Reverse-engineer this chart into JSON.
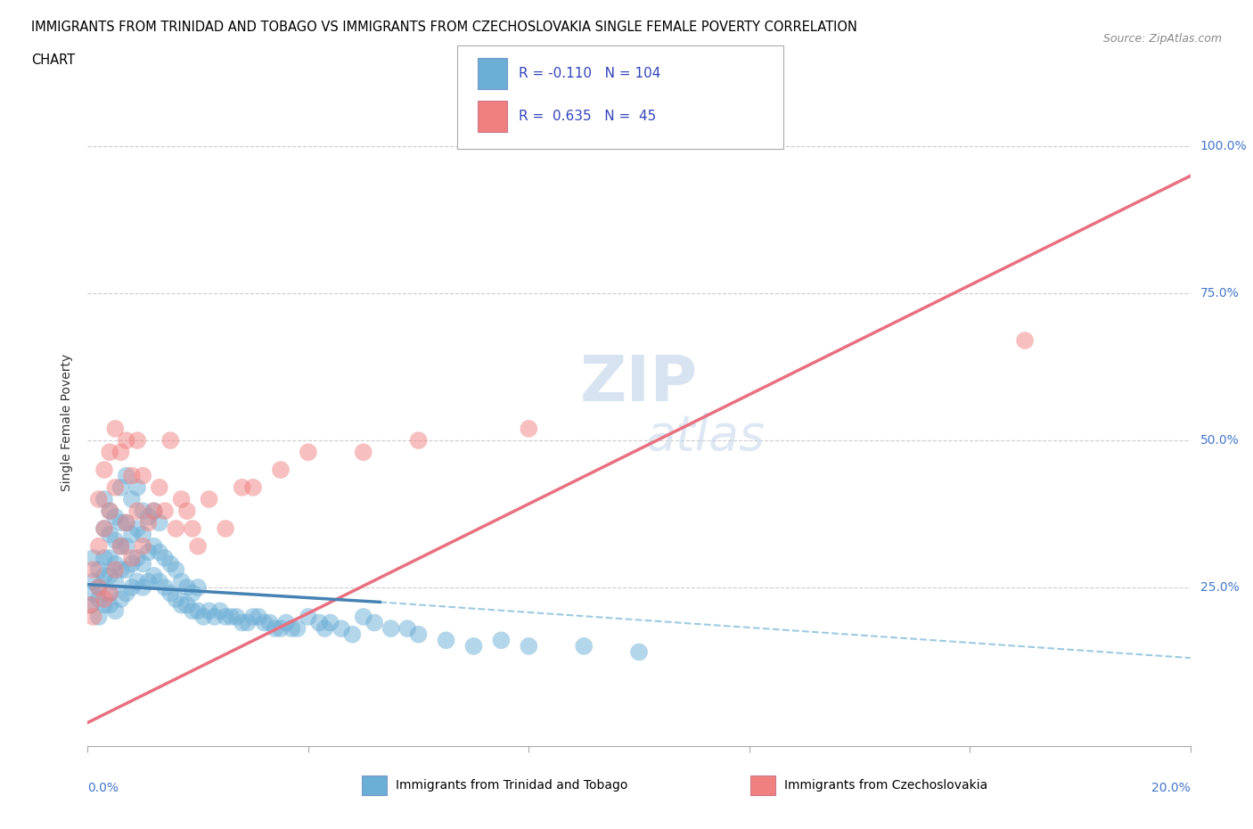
{
  "title_line1": "IMMIGRANTS FROM TRINIDAD AND TOBAGO VS IMMIGRANTS FROM CZECHOSLOVAKIA SINGLE FEMALE POVERTY CORRELATION",
  "title_line2": "CHART",
  "source": "Source: ZipAtlas.com",
  "ylabel": "Single Female Poverty",
  "ytick_labels": [
    "25.0%",
    "50.0%",
    "75.0%",
    "100.0%"
  ],
  "ytick_values": [
    0.25,
    0.5,
    0.75,
    1.0
  ],
  "xlim": [
    0.0,
    0.2
  ],
  "ylim": [
    -0.02,
    1.08
  ],
  "color_blue": "#6BAED6",
  "color_pink": "#F08080",
  "blue_line_solid_color": "#4682B4",
  "blue_line_dash_color": "#9ECAE1",
  "pink_line_color": "#E87080",
  "blue_R": -0.11,
  "blue_N": 104,
  "pink_R": 0.635,
  "pink_N": 45,
  "blue_scatter_x": [
    0.0005,
    0.001,
    0.001,
    0.001,
    0.002,
    0.002,
    0.002,
    0.002,
    0.003,
    0.003,
    0.003,
    0.003,
    0.003,
    0.004,
    0.004,
    0.004,
    0.004,
    0.004,
    0.004,
    0.005,
    0.005,
    0.005,
    0.005,
    0.005,
    0.006,
    0.006,
    0.006,
    0.006,
    0.006,
    0.007,
    0.007,
    0.007,
    0.007,
    0.007,
    0.008,
    0.008,
    0.008,
    0.008,
    0.009,
    0.009,
    0.009,
    0.009,
    0.01,
    0.01,
    0.01,
    0.01,
    0.011,
    0.011,
    0.011,
    0.012,
    0.012,
    0.012,
    0.013,
    0.013,
    0.013,
    0.014,
    0.014,
    0.015,
    0.015,
    0.016,
    0.016,
    0.017,
    0.017,
    0.018,
    0.018,
    0.019,
    0.019,
    0.02,
    0.02,
    0.021,
    0.022,
    0.023,
    0.024,
    0.025,
    0.026,
    0.027,
    0.028,
    0.029,
    0.03,
    0.031,
    0.032,
    0.033,
    0.034,
    0.035,
    0.036,
    0.037,
    0.038,
    0.04,
    0.042,
    0.043,
    0.044,
    0.046,
    0.048,
    0.05,
    0.052,
    0.055,
    0.058,
    0.06,
    0.065,
    0.07,
    0.075,
    0.08,
    0.09,
    0.1
  ],
  "blue_scatter_y": [
    0.22,
    0.24,
    0.26,
    0.3,
    0.2,
    0.23,
    0.25,
    0.28,
    0.22,
    0.27,
    0.3,
    0.35,
    0.4,
    0.22,
    0.24,
    0.27,
    0.3,
    0.34,
    0.38,
    0.21,
    0.26,
    0.29,
    0.33,
    0.37,
    0.23,
    0.28,
    0.32,
    0.36,
    0.42,
    0.24,
    0.28,
    0.32,
    0.36,
    0.44,
    0.25,
    0.29,
    0.34,
    0.4,
    0.26,
    0.3,
    0.35,
    0.42,
    0.25,
    0.29,
    0.34,
    0.38,
    0.26,
    0.31,
    0.37,
    0.27,
    0.32,
    0.38,
    0.26,
    0.31,
    0.36,
    0.25,
    0.3,
    0.24,
    0.29,
    0.23,
    0.28,
    0.22,
    0.26,
    0.22,
    0.25,
    0.21,
    0.24,
    0.21,
    0.25,
    0.2,
    0.21,
    0.2,
    0.21,
    0.2,
    0.2,
    0.2,
    0.19,
    0.19,
    0.2,
    0.2,
    0.19,
    0.19,
    0.18,
    0.18,
    0.19,
    0.18,
    0.18,
    0.2,
    0.19,
    0.18,
    0.19,
    0.18,
    0.17,
    0.2,
    0.19,
    0.18,
    0.18,
    0.17,
    0.16,
    0.15,
    0.16,
    0.15,
    0.15,
    0.14
  ],
  "pink_scatter_x": [
    0.0005,
    0.001,
    0.001,
    0.002,
    0.002,
    0.002,
    0.003,
    0.003,
    0.003,
    0.004,
    0.004,
    0.004,
    0.005,
    0.005,
    0.005,
    0.006,
    0.006,
    0.007,
    0.007,
    0.008,
    0.008,
    0.009,
    0.009,
    0.01,
    0.01,
    0.011,
    0.012,
    0.013,
    0.014,
    0.015,
    0.016,
    0.017,
    0.018,
    0.019,
    0.02,
    0.022,
    0.025,
    0.028,
    0.03,
    0.035,
    0.04,
    0.05,
    0.06,
    0.08,
    0.17
  ],
  "pink_scatter_y": [
    0.22,
    0.2,
    0.28,
    0.25,
    0.32,
    0.4,
    0.23,
    0.35,
    0.45,
    0.24,
    0.38,
    0.48,
    0.28,
    0.42,
    0.52,
    0.32,
    0.48,
    0.36,
    0.5,
    0.3,
    0.44,
    0.38,
    0.5,
    0.32,
    0.44,
    0.36,
    0.38,
    0.42,
    0.38,
    0.5,
    0.35,
    0.4,
    0.38,
    0.35,
    0.32,
    0.4,
    0.35,
    0.42,
    0.42,
    0.45,
    0.48,
    0.48,
    0.5,
    0.52,
    0.67
  ],
  "blue_line_x_solid_start": 0.0,
  "blue_line_x_solid_end": 0.053,
  "blue_line_x_dash_start": 0.053,
  "blue_line_x_dash_end": 0.2,
  "blue_line_y_at_0": 0.255,
  "blue_line_y_at_053": 0.225,
  "blue_line_y_at_20": 0.13,
  "pink_line_y_at_0": 0.02,
  "pink_line_y_at_20": 0.95
}
